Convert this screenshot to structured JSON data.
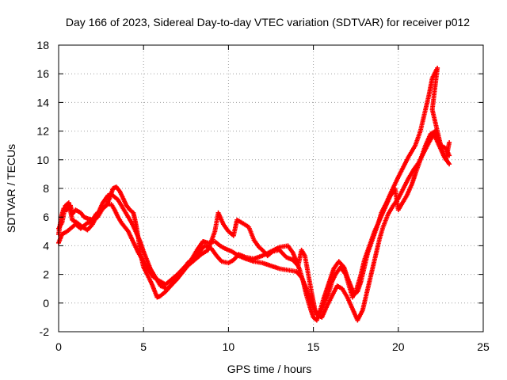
{
  "chart_data": {
    "type": "scatter",
    "title": "Day 166 of 2023, Sidereal Day-to-day VTEC variation (SDTVAR) for receiver p012",
    "xlabel": "GPS time / hours",
    "ylabel": "SDTVAR / TECUs",
    "xlim": [
      0,
      25
    ],
    "ylim": [
      -2,
      18
    ],
    "xticks": [
      0,
      5,
      10,
      15,
      20,
      25
    ],
    "yticks": [
      -2,
      0,
      2,
      4,
      6,
      8,
      10,
      12,
      14,
      16,
      18
    ],
    "grid": true,
    "marker": "+",
    "color": "#ff0000",
    "series": [
      {
        "points": [
          [
            0.0,
            4.8
          ],
          [
            0.1,
            5.6
          ],
          [
            0.2,
            6.2
          ],
          [
            0.3,
            6.6
          ],
          [
            0.5,
            6.5
          ],
          [
            0.7,
            6.8
          ],
          [
            0.8,
            6.2
          ],
          [
            1.0,
            6.5
          ],
          [
            1.3,
            6.3
          ],
          [
            1.5,
            6.0
          ],
          [
            1.7,
            5.9
          ],
          [
            2.0,
            5.8
          ],
          [
            2.2,
            6.2
          ],
          [
            2.5,
            6.5
          ],
          [
            2.8,
            6.8
          ],
          [
            3.0,
            7.3
          ],
          [
            3.2,
            8.0
          ],
          [
            3.4,
            8.1
          ],
          [
            3.6,
            7.8
          ],
          [
            3.8,
            7.3
          ],
          [
            4.0,
            6.8
          ],
          [
            4.2,
            6.5
          ],
          [
            4.4,
            6.3
          ],
          [
            4.5,
            5.8
          ],
          [
            4.6,
            5.2
          ],
          [
            4.7,
            4.5
          ],
          [
            4.8,
            3.5
          ],
          [
            5.0,
            2.5
          ],
          [
            5.3,
            1.8
          ],
          [
            5.5,
            1.3
          ],
          [
            5.7,
            0.7
          ],
          [
            5.8,
            0.4
          ],
          [
            6.0,
            0.5
          ],
          [
            6.3,
            0.8
          ],
          [
            6.6,
            1.2
          ],
          [
            7.0,
            1.7
          ],
          [
            7.3,
            2.2
          ],
          [
            7.6,
            2.8
          ],
          [
            8.0,
            3.2
          ],
          [
            8.3,
            3.6
          ],
          [
            8.6,
            4.0
          ],
          [
            9.0,
            3.8
          ],
          [
            9.3,
            3.3
          ],
          [
            9.6,
            2.9
          ],
          [
            10.0,
            2.8
          ],
          [
            10.3,
            3.0
          ],
          [
            10.6,
            3.4
          ],
          [
            11.0,
            3.2
          ],
          [
            11.5,
            3.1
          ],
          [
            12.0,
            3.3
          ],
          [
            12.5,
            3.6
          ],
          [
            13.0,
            3.9
          ],
          [
            13.5,
            4.0
          ],
          [
            13.8,
            3.5
          ],
          [
            14.0,
            2.9
          ],
          [
            14.2,
            2.3
          ],
          [
            14.4,
            1.5
          ],
          [
            14.5,
            1.0
          ],
          [
            14.6,
            0.5
          ],
          [
            14.8,
            -0.3
          ],
          [
            15.0,
            -1.0
          ],
          [
            15.2,
            -1.2
          ],
          [
            15.4,
            -0.5
          ],
          [
            15.6,
            0.3
          ],
          [
            15.8,
            1.0
          ],
          [
            16.0,
            1.7
          ],
          [
            16.2,
            2.4
          ],
          [
            16.5,
            2.9
          ],
          [
            16.8,
            2.5
          ],
          [
            17.0,
            1.8
          ],
          [
            17.2,
            1.2
          ],
          [
            17.4,
            0.6
          ],
          [
            17.6,
            0.8
          ],
          [
            17.8,
            1.5
          ],
          [
            18.0,
            2.5
          ],
          [
            18.2,
            3.5
          ],
          [
            18.5,
            4.5
          ],
          [
            18.8,
            5.5
          ],
          [
            19.0,
            6.3
          ],
          [
            19.3,
            7.0
          ],
          [
            19.6,
            7.8
          ],
          [
            19.8,
            8.3
          ],
          [
            20.0,
            8.8
          ],
          [
            20.3,
            9.5
          ],
          [
            20.6,
            10.2
          ],
          [
            21.0,
            11.0
          ],
          [
            21.3,
            12.0
          ],
          [
            21.6,
            13.5
          ],
          [
            21.8,
            14.5
          ],
          [
            22.0,
            15.7
          ],
          [
            22.3,
            16.4
          ],
          [
            22.0,
            13.5
          ],
          [
            22.2,
            12.5
          ],
          [
            22.5,
            11.0
          ],
          [
            22.8,
            10.0
          ],
          [
            23.0,
            11.2
          ]
        ]
      },
      {
        "points": [
          [
            0.0,
            4.2
          ],
          [
            0.2,
            4.8
          ],
          [
            0.5,
            5.0
          ],
          [
            0.8,
            5.3
          ],
          [
            1.0,
            5.5
          ],
          [
            1.3,
            5.2
          ],
          [
            1.5,
            5.4
          ],
          [
            1.7,
            5.6
          ],
          [
            2.0,
            5.7
          ],
          [
            2.3,
            6.0
          ],
          [
            2.6,
            6.6
          ],
          [
            2.9,
            6.9
          ],
          [
            3.1,
            6.9
          ],
          [
            3.3,
            6.5
          ],
          [
            3.5,
            6.0
          ],
          [
            3.7,
            5.6
          ],
          [
            3.9,
            5.3
          ],
          [
            4.1,
            5.0
          ],
          [
            4.3,
            4.5
          ],
          [
            4.5,
            4.0
          ],
          [
            4.7,
            3.5
          ],
          [
            5.0,
            2.9
          ],
          [
            5.3,
            2.3
          ],
          [
            5.6,
            1.8
          ],
          [
            6.0,
            1.5
          ],
          [
            6.3,
            1.3
          ],
          [
            6.6,
            1.6
          ],
          [
            7.0,
            2.0
          ],
          [
            7.4,
            2.5
          ],
          [
            7.8,
            3.0
          ],
          [
            8.2,
            3.8
          ],
          [
            8.5,
            4.3
          ],
          [
            8.8,
            4.2
          ],
          [
            9.2,
            4.3
          ],
          [
            9.5,
            4.0
          ],
          [
            9.8,
            3.8
          ],
          [
            10.2,
            3.6
          ],
          [
            10.6,
            3.3
          ],
          [
            11.0,
            3.1
          ],
          [
            11.5,
            2.9
          ],
          [
            12.0,
            2.8
          ],
          [
            12.5,
            2.6
          ],
          [
            13.0,
            2.4
          ],
          [
            13.5,
            2.3
          ],
          [
            14.0,
            2.2
          ],
          [
            14.3,
            1.8
          ],
          [
            14.6,
            1.0
          ],
          [
            14.9,
            0.0
          ],
          [
            15.2,
            -0.8
          ],
          [
            15.5,
            -1.0
          ],
          [
            15.8,
            -0.2
          ],
          [
            16.1,
            0.5
          ],
          [
            16.4,
            1.2
          ],
          [
            16.7,
            1.0
          ],
          [
            17.0,
            0.4
          ],
          [
            17.3,
            -0.4
          ],
          [
            17.6,
            -1.2
          ],
          [
            17.9,
            -0.5
          ],
          [
            18.1,
            0.5
          ],
          [
            18.3,
            1.5
          ],
          [
            18.5,
            2.5
          ],
          [
            18.7,
            3.5
          ],
          [
            18.9,
            4.5
          ],
          [
            19.1,
            5.3
          ],
          [
            19.4,
            6.2
          ],
          [
            19.7,
            6.8
          ],
          [
            20.0,
            7.3
          ],
          [
            20.3,
            8.0
          ],
          [
            20.6,
            8.7
          ],
          [
            20.9,
            9.3
          ],
          [
            21.2,
            9.8
          ],
          [
            21.5,
            10.5
          ],
          [
            21.8,
            11.2
          ],
          [
            22.1,
            11.8
          ],
          [
            22.4,
            11.0
          ],
          [
            22.7,
            10.2
          ],
          [
            23.0,
            9.7
          ]
        ]
      },
      {
        "points": [
          [
            0.0,
            5.2
          ],
          [
            0.2,
            5.6
          ],
          [
            0.4,
            6.8
          ],
          [
            0.6,
            7.0
          ],
          [
            0.8,
            5.8
          ],
          [
            1.1,
            5.6
          ],
          [
            1.4,
            5.3
          ],
          [
            1.7,
            5.1
          ],
          [
            2.0,
            5.5
          ],
          [
            2.3,
            6.2
          ],
          [
            2.6,
            7.0
          ],
          [
            2.9,
            7.5
          ],
          [
            3.1,
            7.6
          ],
          [
            3.3,
            7.4
          ],
          [
            3.5,
            7.2
          ],
          [
            3.7,
            6.8
          ],
          [
            3.9,
            6.4
          ],
          [
            4.1,
            6.0
          ],
          [
            4.3,
            5.6
          ],
          [
            4.5,
            5.1
          ],
          [
            4.8,
            4.3
          ],
          [
            5.0,
            3.6
          ],
          [
            5.2,
            3.0
          ],
          [
            5.4,
            2.4
          ],
          [
            5.7,
            1.8
          ],
          [
            6.0,
            1.2
          ],
          [
            6.4,
            1.0
          ],
          [
            6.8,
            1.5
          ],
          [
            7.2,
            2.0
          ],
          [
            7.6,
            2.6
          ],
          [
            8.0,
            3.0
          ],
          [
            8.4,
            3.4
          ],
          [
            8.8,
            3.7
          ],
          [
            9.2,
            5.0
          ],
          [
            9.4,
            6.3
          ],
          [
            9.7,
            5.5
          ],
          [
            10.0,
            5.0
          ],
          [
            10.3,
            4.7
          ],
          [
            10.5,
            5.8
          ],
          [
            10.8,
            5.6
          ],
          [
            11.2,
            5.3
          ],
          [
            11.5,
            4.4
          ],
          [
            11.8,
            3.9
          ],
          [
            12.0,
            3.7
          ],
          [
            12.3,
            3.3
          ],
          [
            12.6,
            3.6
          ],
          [
            13.0,
            3.7
          ],
          [
            13.4,
            3.2
          ],
          [
            13.8,
            3.0
          ],
          [
            14.1,
            2.6
          ],
          [
            14.3,
            3.7
          ],
          [
            14.5,
            3.3
          ],
          [
            14.7,
            2.0
          ],
          [
            14.9,
            0.7
          ],
          [
            15.1,
            -0.5
          ],
          [
            15.3,
            -0.9
          ],
          [
            15.5,
            -0.4
          ],
          [
            15.7,
            0.2
          ],
          [
            15.9,
            0.7
          ],
          [
            16.1,
            1.5
          ],
          [
            16.3,
            2.0
          ],
          [
            16.6,
            2.5
          ],
          [
            16.9,
            2.0
          ],
          [
            17.1,
            1.2
          ],
          [
            17.3,
            0.4
          ],
          [
            17.5,
            0.8
          ],
          [
            17.8,
            2.0
          ],
          [
            18.0,
            3.0
          ],
          [
            18.3,
            4.0
          ],
          [
            18.6,
            5.0
          ],
          [
            18.9,
            5.8
          ],
          [
            19.2,
            6.6
          ],
          [
            19.5,
            7.4
          ],
          [
            19.8,
            8.0
          ],
          [
            20.0,
            6.5
          ],
          [
            20.2,
            6.9
          ],
          [
            20.5,
            7.5
          ],
          [
            20.8,
            8.3
          ],
          [
            21.0,
            9.0
          ],
          [
            21.3,
            10.0
          ],
          [
            21.6,
            11.0
          ],
          [
            21.9,
            11.8
          ],
          [
            22.2,
            12.0
          ],
          [
            22.5,
            11.0
          ],
          [
            22.8,
            10.8
          ],
          [
            23.0,
            10.3
          ]
        ]
      }
    ]
  }
}
